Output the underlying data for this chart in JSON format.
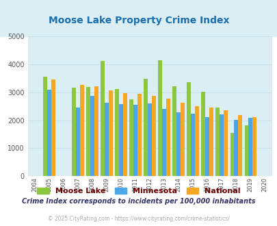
{
  "title": "Moose Lake Property Crime Index",
  "title_color": "#1a6faf",
  "years": [
    2004,
    2005,
    2006,
    2007,
    2008,
    2009,
    2010,
    2011,
    2012,
    2013,
    2014,
    2015,
    2016,
    2017,
    2018,
    2019,
    2020
  ],
  "moose_lake": [
    null,
    3550,
    null,
    3170,
    3180,
    4120,
    3120,
    2750,
    3480,
    4140,
    3210,
    3360,
    3010,
    2460,
    1560,
    1820,
    null
  ],
  "minnesota": [
    null,
    3090,
    null,
    2460,
    2860,
    2630,
    2580,
    2550,
    2590,
    2400,
    2280,
    2230,
    2120,
    2200,
    2020,
    2080,
    null
  ],
  "national": [
    null,
    3450,
    null,
    3250,
    3210,
    3060,
    2960,
    2950,
    2880,
    2770,
    2620,
    2510,
    2460,
    2360,
    2190,
    2120,
    null
  ],
  "moose_lake_color": "#8dc63f",
  "minnesota_color": "#4da6e8",
  "national_color": "#f5a623",
  "plot_bg_color": "#dbeef4",
  "fig_bg_color": "#ffffff",
  "title_area_bg": "#dbeef4",
  "ylim": [
    0,
    5000
  ],
  "yticks": [
    0,
    1000,
    2000,
    3000,
    4000,
    5000
  ],
  "grid_color": "#c8e0ea",
  "legend_labels": [
    "Moose Lake",
    "Minnesota",
    "National"
  ],
  "legend_text_color": "#660000",
  "footnote1": "Crime Index corresponds to incidents per 100,000 inhabitants",
  "footnote2": "© 2025 CityRating.com - https://www.cityrating.com/crime-statistics/",
  "bar_width": 0.28
}
